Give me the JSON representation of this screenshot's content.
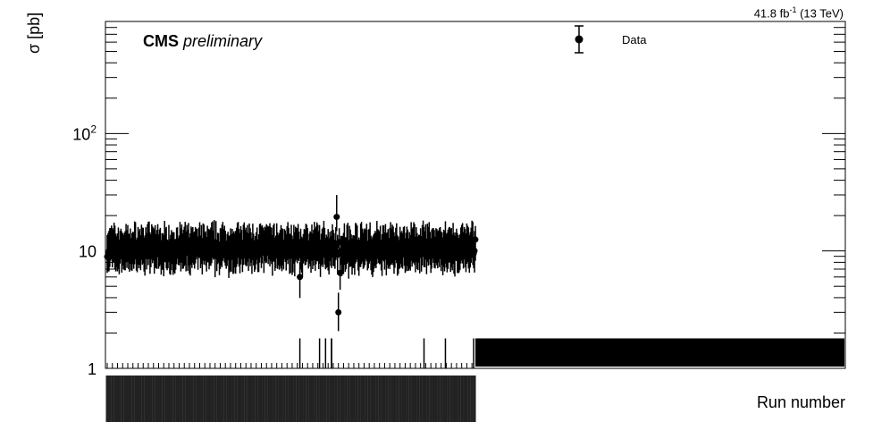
{
  "header": {
    "lumi_value": "41.8 fb",
    "lumi_exp": "-1",
    "lumi_energy": "(13 TeV)",
    "cms_bold": "CMS",
    "cms_italic": "preliminary"
  },
  "chart_data": {
    "type": "scatter",
    "title": "",
    "xlabel": "Run number",
    "ylabel": "σ [pb]",
    "yscale": "log",
    "ylim": [
      1,
      900
    ],
    "yticks": [
      {
        "value": 1,
        "label": "1"
      },
      {
        "value": 10,
        "label": "10"
      },
      {
        "value": 100,
        "label": "10",
        "exp": "2"
      }
    ],
    "grid": false,
    "legend": {
      "position": "top-right",
      "entries": [
        {
          "label": "Data",
          "marker": "filled-circle-with-error-bar"
        }
      ]
    },
    "series": [
      {
        "name": "Data",
        "n_runs_with_data": 430,
        "typical_value": 10.5,
        "typical_spread": [
          7,
          15
        ],
        "outliers": [
          {
            "run_index": 225,
            "value": 6.0
          },
          {
            "run_index": 268,
            "value": 19.5
          },
          {
            "run_index": 270,
            "value": 3.0
          },
          {
            "run_index": 272,
            "value": 6.5
          },
          {
            "run_index": 430,
            "value": 12.5
          }
        ]
      }
    ]
  }
}
